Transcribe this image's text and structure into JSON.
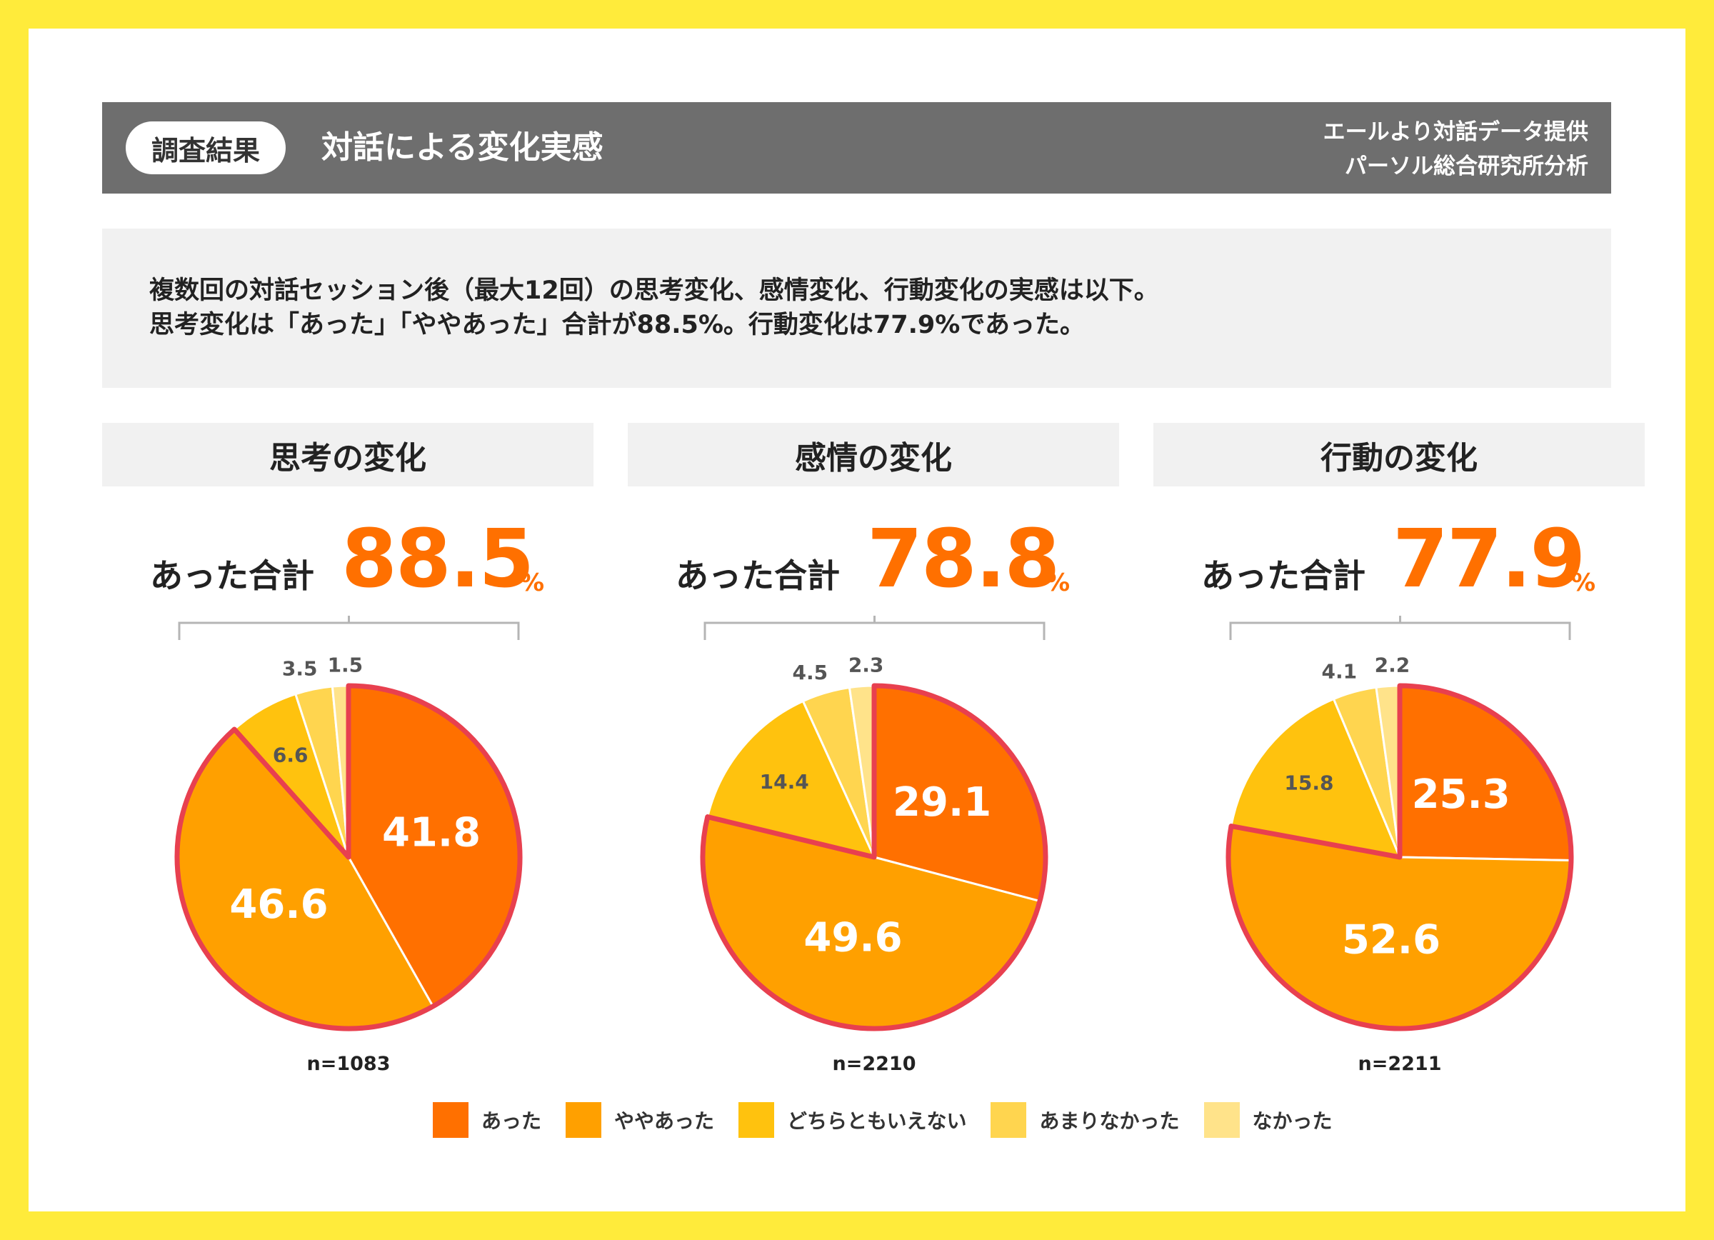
{
  "header": {
    "badge": "調査結果",
    "title": "対話による変化実感",
    "source_line1": "エールより対話データ提供",
    "source_line2": "パーソル総合研究所分析"
  },
  "summary": {
    "line1": "複数回の対話セッション後（最大12回）の思考変化、感情変化、行動変化の実感は以下。",
    "line2": "思考変化は「あった」「ややあった」合計が88.5%。行動変化は77.9%であった。"
  },
  "total_label": "あった合計",
  "total_unit": "%",
  "colors": [
    "#FF7000",
    "#FFA000",
    "#FFC20E",
    "#FFD54F",
    "#FFE38A"
  ],
  "highlight_color": "#E8404F",
  "legend": [
    "あった",
    "ややあった",
    "どちらともいえない",
    "あまりなかった",
    "なかった"
  ],
  "chart_data": [
    {
      "type": "pie",
      "title": "思考の変化",
      "total": "88.5",
      "n": "n=1083",
      "categories": [
        "あった",
        "ややあった",
        "どちらともいえない",
        "あまりなかった",
        "なかった"
      ],
      "values": [
        41.8,
        46.6,
        6.6,
        3.5,
        1.5
      ],
      "labels": [
        "41.8",
        "46.6",
        "6.6",
        "3.5",
        "1.5"
      ]
    },
    {
      "type": "pie",
      "title": "感情の変化",
      "total": "78.8",
      "n": "n=2210",
      "categories": [
        "あった",
        "ややあった",
        "どちらともいえない",
        "あまりなかった",
        "なかった"
      ],
      "values": [
        29.1,
        49.6,
        14.4,
        4.5,
        2.3
      ],
      "labels": [
        "29.1",
        "49.6",
        "14.4",
        "4.5",
        "2.3"
      ]
    },
    {
      "type": "pie",
      "title": "行動の変化",
      "total": "77.9",
      "n": "n=2211",
      "categories": [
        "あった",
        "ややあった",
        "どちらともいえない",
        "あまりなかった",
        "なかった"
      ],
      "values": [
        25.3,
        52.6,
        15.8,
        4.1,
        2.2
      ],
      "labels": [
        "25.3",
        "52.6",
        "15.8",
        "4.1",
        "2.2"
      ]
    }
  ]
}
